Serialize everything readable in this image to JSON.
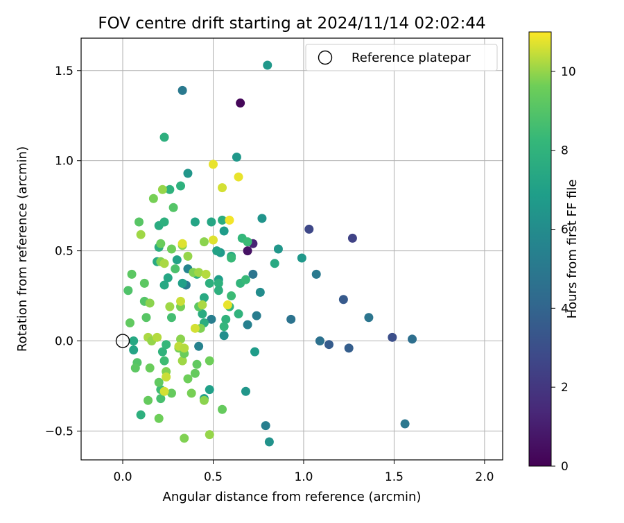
{
  "chart_data": {
    "type": "scatter",
    "title": "FOV centre drift starting at 2024/11/14 02:02:44",
    "xlabel": "Angular distance from reference (arcmin)",
    "ylabel": "Rotation from reference (arcmin)",
    "xlim": [
      -0.23,
      2.1
    ],
    "ylim": [
      -0.66,
      1.68
    ],
    "xticks": [
      0.0,
      0.5,
      1.0,
      1.5,
      2.0
    ],
    "xtick_labels": [
      "0.0",
      "0.5",
      "1.0",
      "1.5",
      "2.0"
    ],
    "yticks": [
      -0.5,
      0.0,
      0.5,
      1.0,
      1.5
    ],
    "ytick_labels": [
      "−0.5",
      "0.0",
      "0.5",
      "1.0",
      "1.5"
    ],
    "grid": true,
    "legend": {
      "placement": "top-right",
      "entries": [
        "Reference platepar"
      ]
    },
    "reference_point": {
      "x": 0.0,
      "y": 0.0
    },
    "colorbar": {
      "label": "Hours from first FF file",
      "range": [
        0,
        11
      ],
      "ticks": [
        0,
        2,
        4,
        6,
        8,
        10
      ],
      "tick_labels": [
        "0",
        "2",
        "4",
        "6",
        "8",
        "10"
      ],
      "colormap": "viridis"
    },
    "points": [
      {
        "x": 0.65,
        "y": 1.32,
        "c": 0.2
      },
      {
        "x": 0.69,
        "y": 0.5,
        "c": 0.6
      },
      {
        "x": 0.72,
        "y": 0.54,
        "c": 1.2
      },
      {
        "x": 1.27,
        "y": 0.57,
        "c": 2.5
      },
      {
        "x": 1.03,
        "y": 0.62,
        "c": 2.7
      },
      {
        "x": 1.49,
        "y": 0.02,
        "c": 3.0
      },
      {
        "x": 1.22,
        "y": 0.23,
        "c": 3.5
      },
      {
        "x": 1.14,
        "y": -0.02,
        "c": 3.6
      },
      {
        "x": 1.25,
        "y": -0.04,
        "c": 3.7
      },
      {
        "x": 1.6,
        "y": 0.01,
        "c": 4.5
      },
      {
        "x": 1.09,
        "y": 0.0,
        "c": 4.6
      },
      {
        "x": 1.36,
        "y": 0.13,
        "c": 4.8
      },
      {
        "x": 0.93,
        "y": 0.12,
        "c": 4.7
      },
      {
        "x": 1.07,
        "y": 0.37,
        "c": 5.0
      },
      {
        "x": 1.56,
        "y": -0.46,
        "c": 4.9
      },
      {
        "x": 0.79,
        "y": -0.47,
        "c": 5.3
      },
      {
        "x": 0.33,
        "y": 1.39,
        "c": 5.0
      },
      {
        "x": 0.72,
        "y": 0.37,
        "c": 4.8
      },
      {
        "x": 0.74,
        "y": 0.14,
        "c": 5.2
      },
      {
        "x": 0.69,
        "y": 0.09,
        "c": 5.4
      },
      {
        "x": 0.49,
        "y": 0.12,
        "c": 5.3
      },
      {
        "x": 0.42,
        "y": -0.03,
        "c": 5.5
      },
      {
        "x": 0.35,
        "y": 0.31,
        "c": 5.1
      },
      {
        "x": 0.36,
        "y": 0.4,
        "c": 5.6
      },
      {
        "x": 0.76,
        "y": 0.27,
        "c": 6.0
      },
      {
        "x": 0.56,
        "y": 0.03,
        "c": 6.1
      },
      {
        "x": 0.81,
        "y": -0.56,
        "c": 6.3
      },
      {
        "x": 0.8,
        "y": 1.53,
        "c": 6.6
      },
      {
        "x": 0.36,
        "y": 0.93,
        "c": 6.5
      },
      {
        "x": 0.63,
        "y": 1.02,
        "c": 6.6
      },
      {
        "x": 0.77,
        "y": 0.68,
        "c": 6.4
      },
      {
        "x": 0.86,
        "y": 0.51,
        "c": 6.5
      },
      {
        "x": 0.99,
        "y": 0.46,
        "c": 6.6
      },
      {
        "x": 0.56,
        "y": 0.61,
        "c": 6.8
      },
      {
        "x": 0.54,
        "y": 0.49,
        "c": 6.7
      },
      {
        "x": 0.53,
        "y": 0.34,
        "c": 6.9
      },
      {
        "x": 0.68,
        "y": -0.28,
        "c": 6.5
      },
      {
        "x": 0.73,
        "y": -0.06,
        "c": 6.8
      },
      {
        "x": 0.45,
        "y": -0.32,
        "c": 6.9
      },
      {
        "x": 0.48,
        "y": -0.27,
        "c": 7.0
      },
      {
        "x": 0.33,
        "y": 0.32,
        "c": 7.0
      },
      {
        "x": 0.3,
        "y": 0.45,
        "c": 7.1
      },
      {
        "x": 0.4,
        "y": 0.66,
        "c": 7.2
      },
      {
        "x": 0.49,
        "y": 0.66,
        "c": 7.3
      },
      {
        "x": 0.52,
        "y": 0.5,
        "c": 7.1
      },
      {
        "x": 0.84,
        "y": 0.43,
        "c": 7.5
      },
      {
        "x": 0.55,
        "y": 0.67,
        "c": 7.7
      },
      {
        "x": 0.6,
        "y": 0.47,
        "c": 7.6
      },
      {
        "x": 0.23,
        "y": 1.13,
        "c": 7.8
      },
      {
        "x": 0.32,
        "y": 0.86,
        "c": 7.9
      },
      {
        "x": 0.26,
        "y": 0.84,
        "c": 7.9
      },
      {
        "x": 0.2,
        "y": 0.64,
        "c": 7.6
      },
      {
        "x": 0.23,
        "y": 0.66,
        "c": 7.8
      },
      {
        "x": 0.2,
        "y": 0.52,
        "c": 7.7
      },
      {
        "x": 0.19,
        "y": 0.44,
        "c": 7.5
      },
      {
        "x": 0.23,
        "y": 0.31,
        "c": 7.4
      },
      {
        "x": 0.25,
        "y": 0.35,
        "c": 7.3
      },
      {
        "x": 0.45,
        "y": 0.24,
        "c": 7.5
      },
      {
        "x": 0.44,
        "y": 0.15,
        "c": 7.6
      },
      {
        "x": 0.45,
        "y": 0.1,
        "c": 7.7
      },
      {
        "x": 0.41,
        "y": 0.37,
        "c": 7.8
      },
      {
        "x": 0.48,
        "y": 0.32,
        "c": 7.8
      },
      {
        "x": 0.53,
        "y": 0.32,
        "c": 7.9
      },
      {
        "x": 0.53,
        "y": 0.28,
        "c": 7.8
      },
      {
        "x": 0.57,
        "y": 0.12,
        "c": 8.0
      },
      {
        "x": 0.56,
        "y": 0.08,
        "c": 8.1
      },
      {
        "x": 0.59,
        "y": 0.19,
        "c": 8.2
      },
      {
        "x": 0.6,
        "y": 0.25,
        "c": 8.4
      },
      {
        "x": 0.65,
        "y": 0.32,
        "c": 8.1
      },
      {
        "x": 0.68,
        "y": 0.34,
        "c": 8.3
      },
      {
        "x": 0.66,
        "y": 0.57,
        "c": 8.2
      },
      {
        "x": 0.69,
        "y": 0.55,
        "c": 8.4
      },
      {
        "x": 0.6,
        "y": 0.46,
        "c": 8.3
      },
      {
        "x": 0.64,
        "y": 0.15,
        "c": 8.0
      },
      {
        "x": 0.06,
        "y": -0.05,
        "c": 7.2
      },
      {
        "x": 0.06,
        "y": 0.0,
        "c": 7.4
      },
      {
        "x": 0.1,
        "y": -0.41,
        "c": 7.8
      },
      {
        "x": 0.22,
        "y": -0.06,
        "c": 8.0
      },
      {
        "x": 0.24,
        "y": -0.02,
        "c": 8.2
      },
      {
        "x": 0.21,
        "y": -0.27,
        "c": 8.5
      },
      {
        "x": 0.21,
        "y": -0.32,
        "c": 8.7
      },
      {
        "x": 0.23,
        "y": -0.11,
        "c": 8.5
      },
      {
        "x": 0.27,
        "y": 0.13,
        "c": 8.6
      },
      {
        "x": 0.29,
        "y": 0.4,
        "c": 8.8
      },
      {
        "x": 0.28,
        "y": 0.74,
        "c": 9.0
      },
      {
        "x": 0.09,
        "y": 0.66,
        "c": 9.1
      },
      {
        "x": 0.12,
        "y": 0.32,
        "c": 9.2
      },
      {
        "x": 0.12,
        "y": 0.22,
        "c": 9.0
      },
      {
        "x": 0.13,
        "y": 0.13,
        "c": 9.1
      },
      {
        "x": 0.04,
        "y": 0.1,
        "c": 9.3
      },
      {
        "x": 0.05,
        "y": 0.37,
        "c": 9.2
      },
      {
        "x": 0.03,
        "y": 0.28,
        "c": 8.9
      },
      {
        "x": 0.08,
        "y": -0.12,
        "c": 9.0
      },
      {
        "x": 0.07,
        "y": -0.15,
        "c": 9.2
      },
      {
        "x": 0.14,
        "y": -0.33,
        "c": 9.4
      },
      {
        "x": 0.15,
        "y": -0.15,
        "c": 9.5
      },
      {
        "x": 0.2,
        "y": -0.23,
        "c": 9.3
      },
      {
        "x": 0.2,
        "y": -0.43,
        "c": 9.6
      },
      {
        "x": 0.24,
        "y": -0.17,
        "c": 9.8
      },
      {
        "x": 0.27,
        "y": -0.29,
        "c": 9.4
      },
      {
        "x": 0.31,
        "y": -0.04,
        "c": 9.7
      },
      {
        "x": 0.32,
        "y": 0.01,
        "c": 9.9
      },
      {
        "x": 0.33,
        "y": -0.11,
        "c": 10.1
      },
      {
        "x": 0.34,
        "y": -0.07,
        "c": 9.5
      },
      {
        "x": 0.36,
        "y": -0.21,
        "c": 9.6
      },
      {
        "x": 0.38,
        "y": -0.29,
        "c": 9.7
      },
      {
        "x": 0.4,
        "y": -0.18,
        "c": 9.4
      },
      {
        "x": 0.41,
        "y": -0.13,
        "c": 9.3
      },
      {
        "x": 0.42,
        "y": 0.19,
        "c": 9.2
      },
      {
        "x": 0.43,
        "y": 0.07,
        "c": 9.8
      },
      {
        "x": 0.45,
        "y": -0.33,
        "c": 9.9
      },
      {
        "x": 0.48,
        "y": -0.11,
        "c": 9.6
      },
      {
        "x": 0.48,
        "y": -0.52,
        "c": 10.0
      },
      {
        "x": 0.34,
        "y": -0.54,
        "c": 9.8
      },
      {
        "x": 0.55,
        "y": -0.38,
        "c": 9.4
      },
      {
        "x": 0.15,
        "y": 0.21,
        "c": 9.9
      },
      {
        "x": 0.17,
        "y": 0.79,
        "c": 9.7
      },
      {
        "x": 0.22,
        "y": 0.84,
        "c": 10.0
      },
      {
        "x": 0.1,
        "y": 0.59,
        "c": 10.1
      },
      {
        "x": 0.21,
        "y": 0.54,
        "c": 9.5
      },
      {
        "x": 0.21,
        "y": 0.44,
        "c": 9.8
      },
      {
        "x": 0.23,
        "y": 0.43,
        "c": 10.2
      },
      {
        "x": 0.27,
        "y": 0.51,
        "c": 9.6
      },
      {
        "x": 0.32,
        "y": 0.19,
        "c": 9.7
      },
      {
        "x": 0.33,
        "y": 0.53,
        "c": 9.9
      },
      {
        "x": 0.36,
        "y": 0.47,
        "c": 10.0
      },
      {
        "x": 0.39,
        "y": 0.38,
        "c": 9.8
      },
      {
        "x": 0.42,
        "y": 0.38,
        "c": 10.1
      },
      {
        "x": 0.46,
        "y": 0.37,
        "c": 10.3
      },
      {
        "x": 0.44,
        "y": 0.2,
        "c": 10.2
      },
      {
        "x": 0.45,
        "y": 0.55,
        "c": 9.9
      },
      {
        "x": 0.14,
        "y": 0.02,
        "c": 10.2
      },
      {
        "x": 0.16,
        "y": 0.0,
        "c": 10.0
      },
      {
        "x": 0.19,
        "y": 0.02,
        "c": 10.3
      },
      {
        "x": 0.24,
        "y": -0.2,
        "c": 10.5
      },
      {
        "x": 0.26,
        "y": 0.19,
        "c": 10.1
      },
      {
        "x": 0.31,
        "y": -0.03,
        "c": 10.4
      },
      {
        "x": 0.34,
        "y": -0.04,
        "c": 10.3
      },
      {
        "x": 0.33,
        "y": 0.54,
        "c": 10.7
      },
      {
        "x": 0.4,
        "y": 0.07,
        "c": 10.6
      },
      {
        "x": 0.23,
        "y": -0.28,
        "c": 10.6
      },
      {
        "x": 0.5,
        "y": 0.98,
        "c": 10.8
      },
      {
        "x": 0.55,
        "y": 0.85,
        "c": 10.6
      },
      {
        "x": 0.64,
        "y": 0.91,
        "c": 10.8
      },
      {
        "x": 0.59,
        "y": 0.67,
        "c": 10.9
      },
      {
        "x": 0.5,
        "y": 0.56,
        "c": 10.7
      },
      {
        "x": 0.58,
        "y": 0.2,
        "c": 10.8
      },
      {
        "x": 0.32,
        "y": 0.22,
        "c": 10.5
      }
    ]
  }
}
